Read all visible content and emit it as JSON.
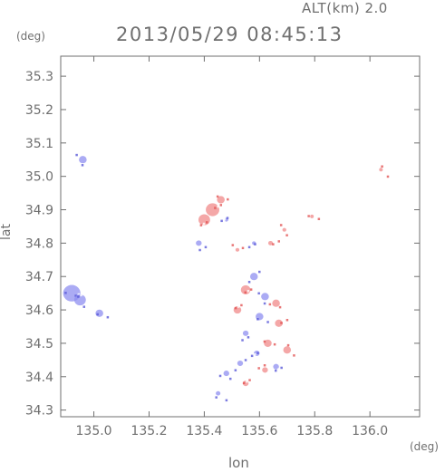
{
  "header": {
    "altitude_label": "ALT(km) 2.0",
    "timestamp": "2013/05/29 08:45:13"
  },
  "axes": {
    "y_unit": "(deg)",
    "x_unit": "(deg)",
    "y_label": "lat",
    "x_label": "lon"
  },
  "chart_data": {
    "type": "heatmap",
    "title": "2013/05/29 08:45:13",
    "subtitle": "ALT(km) 2.0",
    "xlabel": "lon",
    "ylabel": "lat",
    "xlim": [
      134.88,
      136.18
    ],
    "ylim": [
      34.28,
      35.36
    ],
    "x_ticks": [
      "135.0",
      "135.2",
      "135.4",
      "135.6",
      "135.8",
      "136.0"
    ],
    "x_tick_values": [
      135.0,
      135.2,
      135.4,
      135.6,
      135.8,
      136.0
    ],
    "y_ticks": [
      "34.3",
      "34.4",
      "34.5",
      "34.6",
      "34.7",
      "34.8",
      "34.9",
      "35.0",
      "35.1",
      "35.2",
      "35.3"
    ],
    "y_tick_values": [
      34.3,
      34.4,
      34.5,
      34.6,
      34.7,
      34.8,
      34.9,
      35.0,
      35.1,
      35.2,
      35.3
    ],
    "colors": {
      "positive": "#f08a8a",
      "negative": "#8f8ff0",
      "axis": "#6f6f6f"
    },
    "echo_patches": [
      {
        "lon": 134.96,
        "lat": 35.05,
        "sign": -1,
        "size": 0.02
      },
      {
        "lon": 134.92,
        "lat": 34.65,
        "sign": -1,
        "size": 0.045
      },
      {
        "lon": 134.95,
        "lat": 34.63,
        "sign": -1,
        "size": 0.03
      },
      {
        "lon": 135.02,
        "lat": 34.59,
        "sign": -1,
        "size": 0.02
      },
      {
        "lon": 135.43,
        "lat": 34.9,
        "sign": 1,
        "size": 0.035
      },
      {
        "lon": 135.4,
        "lat": 34.87,
        "sign": 1,
        "size": 0.03
      },
      {
        "lon": 135.46,
        "lat": 34.93,
        "sign": 1,
        "size": 0.02
      },
      {
        "lon": 135.38,
        "lat": 34.8,
        "sign": -1,
        "size": 0.015
      },
      {
        "lon": 135.48,
        "lat": 34.87,
        "sign": -1,
        "size": 0.01
      },
      {
        "lon": 135.58,
        "lat": 34.7,
        "sign": -1,
        "size": 0.02
      },
      {
        "lon": 135.55,
        "lat": 34.66,
        "sign": 1,
        "size": 0.025
      },
      {
        "lon": 135.62,
        "lat": 34.64,
        "sign": -1,
        "size": 0.02
      },
      {
        "lon": 135.66,
        "lat": 34.62,
        "sign": 1,
        "size": 0.02
      },
      {
        "lon": 135.52,
        "lat": 34.6,
        "sign": 1,
        "size": 0.02
      },
      {
        "lon": 135.6,
        "lat": 34.58,
        "sign": -1,
        "size": 0.02
      },
      {
        "lon": 135.67,
        "lat": 34.56,
        "sign": 1,
        "size": 0.02
      },
      {
        "lon": 135.55,
        "lat": 34.53,
        "sign": -1,
        "size": 0.015
      },
      {
        "lon": 135.63,
        "lat": 34.5,
        "sign": 1,
        "size": 0.02
      },
      {
        "lon": 135.7,
        "lat": 34.48,
        "sign": 1,
        "size": 0.02
      },
      {
        "lon": 135.59,
        "lat": 34.47,
        "sign": -1,
        "size": 0.015
      },
      {
        "lon": 135.53,
        "lat": 34.44,
        "sign": -1,
        "size": 0.015
      },
      {
        "lon": 135.66,
        "lat": 34.43,
        "sign": -1,
        "size": 0.015
      },
      {
        "lon": 135.62,
        "lat": 34.42,
        "sign": 1,
        "size": 0.015
      },
      {
        "lon": 135.48,
        "lat": 34.41,
        "sign": -1,
        "size": 0.015
      },
      {
        "lon": 135.55,
        "lat": 34.38,
        "sign": 1,
        "size": 0.015
      },
      {
        "lon": 135.45,
        "lat": 34.35,
        "sign": -1,
        "size": 0.012
      },
      {
        "lon": 135.64,
        "lat": 34.8,
        "sign": 1,
        "size": 0.012
      },
      {
        "lon": 135.69,
        "lat": 34.84,
        "sign": 1,
        "size": 0.01
      },
      {
        "lon": 135.79,
        "lat": 34.88,
        "sign": 1,
        "size": 0.008
      },
      {
        "lon": 136.04,
        "lat": 35.02,
        "sign": 1,
        "size": 0.006
      },
      {
        "lon": 135.58,
        "lat": 34.8,
        "sign": -1,
        "size": 0.01
      },
      {
        "lon": 135.52,
        "lat": 34.78,
        "sign": 1,
        "size": 0.01
      }
    ]
  }
}
